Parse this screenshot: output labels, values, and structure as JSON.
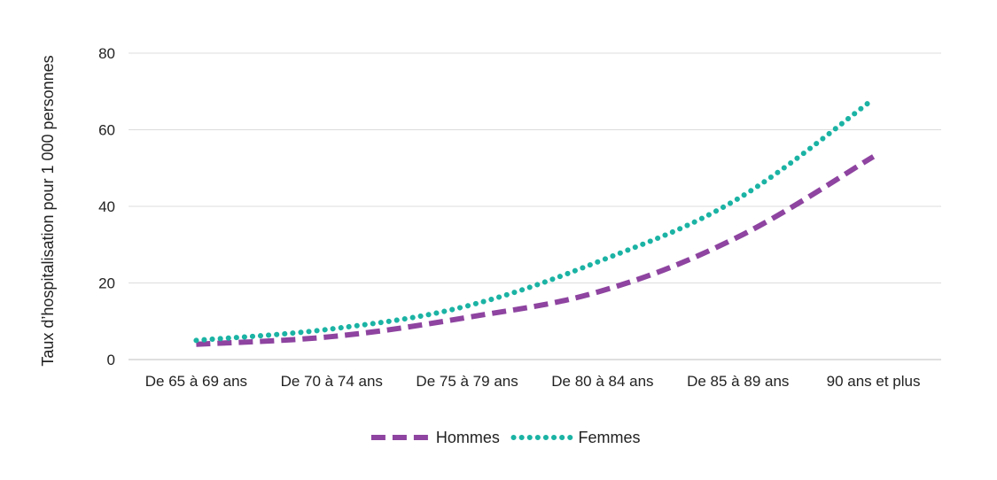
{
  "chart_data": {
    "type": "line",
    "title": "",
    "xlabel": "",
    "ylabel": "Taux d’hospitalisation pour 1 000 personnes",
    "categories": [
      "De 65 à 69 ans",
      "De 70 à 74 ans",
      "De 75 à 79 ans",
      "De 80 à 84 ans",
      "De 85 à 89 ans",
      "90 ans et plus"
    ],
    "ylim": [
      0,
      80
    ],
    "yticks": [
      0,
      20,
      40,
      60,
      80
    ],
    "grid": true,
    "legend_position": "bottom",
    "series": [
      {
        "name": "Hommes",
        "values": [
          4,
          6,
          11,
          18,
          32,
          53
        ],
        "color": "#8E44A0",
        "style": "dashed"
      },
      {
        "name": "Femmes",
        "values": [
          5,
          8,
          14,
          26,
          42,
          68
        ],
        "color": "#1BB3A4",
        "style": "dotted"
      }
    ]
  }
}
